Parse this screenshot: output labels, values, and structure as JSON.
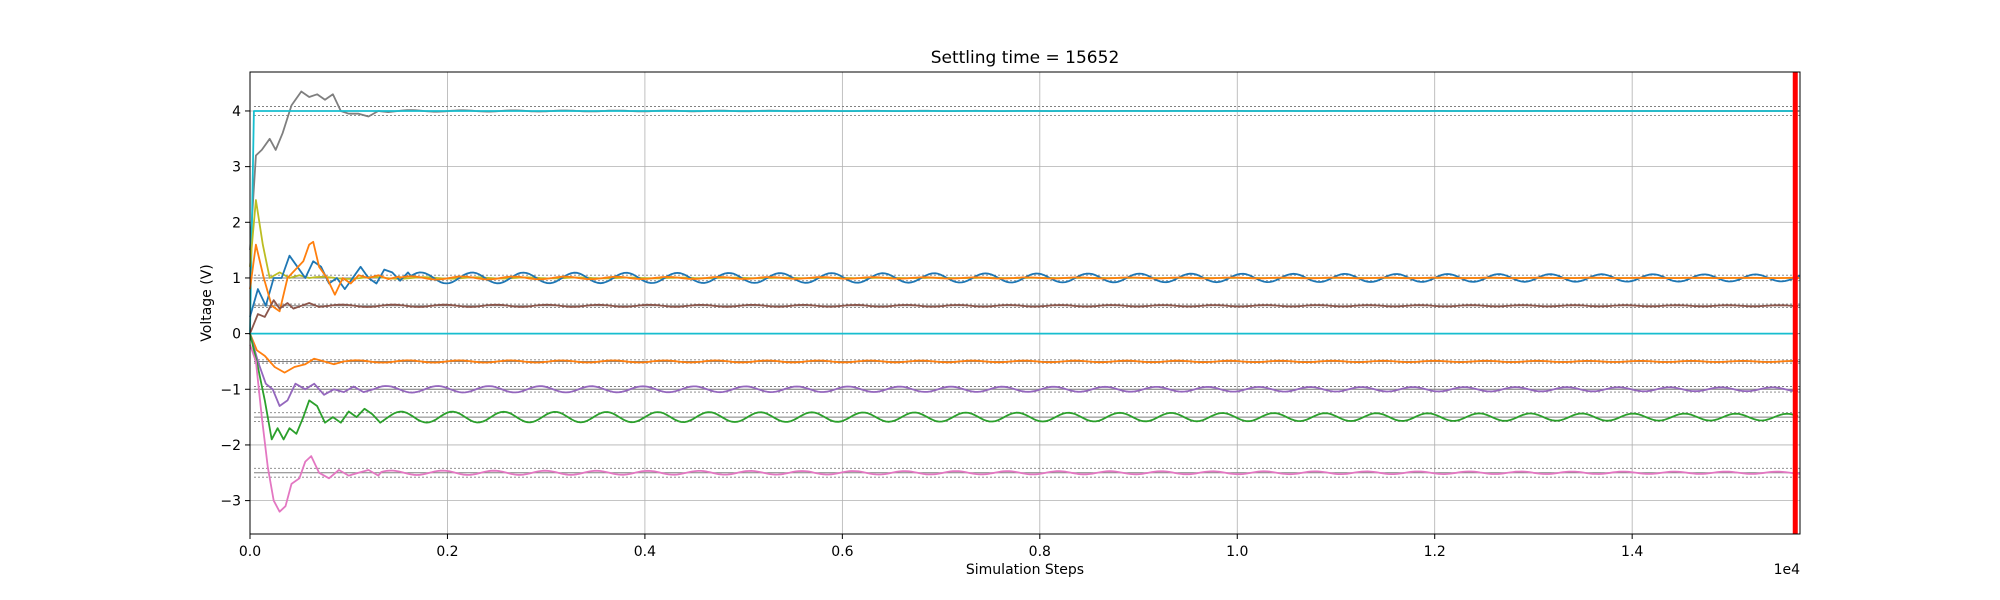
{
  "chart_data": {
    "type": "line",
    "title": "Settling time = 15652",
    "xlabel": "Simulation Steps",
    "ylabel": "Voltage (V)",
    "x_multiplier_label": "1e4",
    "xlim": [
      0,
      15700
    ],
    "ylim": [
      -3.6,
      4.7
    ],
    "x_ticks": [
      0,
      2000,
      4000,
      6000,
      8000,
      10000,
      12000,
      14000
    ],
    "x_tick_labels": [
      "0.0",
      "0.2",
      "0.4",
      "0.6",
      "0.8",
      "1.0",
      "1.2",
      "1.4"
    ],
    "y_ticks": [
      -3,
      -2,
      -1,
      0,
      1,
      2,
      3,
      4
    ],
    "y_tick_labels": [
      "−3",
      "−2",
      "−1",
      "0",
      "1",
      "2",
      "3",
      "4"
    ],
    "grid": true,
    "settling_marker_x": 15652,
    "settling_marker_color": "#ff0000",
    "reference_colors": {
      "solid": "#808080",
      "dotted": "#808080"
    },
    "references": [
      {
        "target": 4.0,
        "band": 0.08
      },
      {
        "target": 1.0,
        "band": 0.05
      },
      {
        "target": 0.5,
        "band": 0.03
      },
      {
        "target": 0.0,
        "band": 0.0
      },
      {
        "target": -0.5,
        "band": 0.03
      },
      {
        "target": -1.0,
        "band": 0.05
      },
      {
        "target": -1.5,
        "band": 0.08
      },
      {
        "target": -2.5,
        "band": 0.08
      }
    ],
    "series": [
      {
        "color": "#7f7f7f",
        "target": 4.0,
        "amp": 0.015,
        "period": 520,
        "decay": 3000,
        "width": 1.8,
        "transient": [
          [
            0,
            1.5
          ],
          [
            60,
            3.2
          ],
          [
            120,
            3.3
          ],
          [
            200,
            3.5
          ],
          [
            260,
            3.3
          ],
          [
            330,
            3.6
          ],
          [
            420,
            4.1
          ],
          [
            520,
            4.35
          ],
          [
            600,
            4.25
          ],
          [
            680,
            4.3
          ],
          [
            760,
            4.2
          ],
          [
            840,
            4.3
          ],
          [
            920,
            4.0
          ],
          [
            1000,
            3.95
          ],
          [
            1100,
            3.95
          ],
          [
            1200,
            3.9
          ],
          [
            1300,
            4.0
          ],
          [
            1400,
            3.98
          ],
          [
            1500,
            4.0
          ]
        ]
      },
      {
        "color": "#17becf",
        "target": 4.0,
        "amp": 0,
        "period": 520,
        "decay": 3000,
        "width": 1.8,
        "transient": [
          [
            0,
            0
          ],
          [
            40,
            4.0
          ],
          [
            80,
            4.0
          ]
        ]
      },
      {
        "color": "#bcbd22",
        "target": 1.0,
        "amp": 0.02,
        "period": 520,
        "decay": 3000,
        "width": 1.8,
        "transient": [
          [
            0,
            1.2
          ],
          [
            60,
            2.4
          ],
          [
            130,
            1.6
          ],
          [
            200,
            1.0
          ],
          [
            300,
            1.1
          ],
          [
            400,
            1.0
          ],
          [
            500,
            1.05
          ],
          [
            600,
            1.0
          ]
        ]
      },
      {
        "color": "#1f77b4",
        "target": 1.0,
        "amp": 0.1,
        "period": 520,
        "decay": 30000,
        "width": 1.8,
        "transient": [
          [
            0,
            0.3
          ],
          [
            80,
            0.8
          ],
          [
            160,
            0.5
          ],
          [
            240,
            1.0
          ],
          [
            320,
            1.0
          ],
          [
            400,
            1.4
          ],
          [
            480,
            1.2
          ],
          [
            560,
            1.0
          ],
          [
            640,
            1.3
          ],
          [
            720,
            1.2
          ],
          [
            800,
            0.9
          ],
          [
            880,
            1.0
          ],
          [
            960,
            0.8
          ],
          [
            1040,
            1.0
          ],
          [
            1120,
            1.2
          ],
          [
            1200,
            1.0
          ],
          [
            1280,
            0.9
          ],
          [
            1360,
            1.15
          ],
          [
            1440,
            1.1
          ],
          [
            1520,
            0.95
          ],
          [
            1600,
            1.1
          ]
        ]
      },
      {
        "color": "#ff7f0e",
        "target": 1.0,
        "amp": 0.03,
        "period": 520,
        "decay": 6000,
        "width": 1.8,
        "transient": [
          [
            0,
            0.8
          ],
          [
            60,
            1.6
          ],
          [
            140,
            1.0
          ],
          [
            220,
            0.5
          ],
          [
            300,
            0.4
          ],
          [
            380,
            1.0
          ],
          [
            460,
            1.15
          ],
          [
            540,
            1.3
          ],
          [
            600,
            1.6
          ],
          [
            640,
            1.65
          ],
          [
            700,
            1.2
          ],
          [
            780,
            1.0
          ],
          [
            860,
            0.7
          ],
          [
            940,
            1.0
          ],
          [
            1020,
            0.9
          ],
          [
            1100,
            1.05
          ],
          [
            1200,
            1.0
          ],
          [
            1300,
            1.05
          ],
          [
            1400,
            0.98
          ],
          [
            1500,
            1.02
          ]
        ]
      },
      {
        "color": "#8c564b",
        "target": 0.5,
        "amp": 0.02,
        "period": 520,
        "decay": 20000,
        "width": 1.8,
        "transient": [
          [
            0,
            0.0
          ],
          [
            80,
            0.35
          ],
          [
            150,
            0.3
          ],
          [
            240,
            0.6
          ],
          [
            300,
            0.45
          ],
          [
            380,
            0.55
          ],
          [
            440,
            0.45
          ],
          [
            520,
            0.5
          ],
          [
            600,
            0.55
          ],
          [
            700,
            0.48
          ],
          [
            800,
            0.5
          ]
        ]
      },
      {
        "color": "#17becf",
        "target": 0.0,
        "amp": 0,
        "period": 520,
        "decay": 3000,
        "width": 1.8,
        "transient": [
          [
            0,
            0
          ],
          [
            200,
            0
          ]
        ]
      },
      {
        "color": "#ff7f0e",
        "target": -0.5,
        "amp": 0.02,
        "period": 520,
        "decay": 20000,
        "width": 1.8,
        "transient": [
          [
            0,
            0.0
          ],
          [
            70,
            -0.3
          ],
          [
            150,
            -0.4
          ],
          [
            250,
            -0.6
          ],
          [
            350,
            -0.7
          ],
          [
            450,
            -0.6
          ],
          [
            560,
            -0.55
          ],
          [
            650,
            -0.45
          ],
          [
            750,
            -0.5
          ],
          [
            850,
            -0.55
          ],
          [
            950,
            -0.5
          ]
        ]
      },
      {
        "color": "#9467bd",
        "target": -1.0,
        "amp": 0.06,
        "period": 520,
        "decay": 25000,
        "width": 1.8,
        "transient": [
          [
            0,
            0.0
          ],
          [
            80,
            -0.5
          ],
          [
            160,
            -0.9
          ],
          [
            230,
            -1.0
          ],
          [
            300,
            -1.3
          ],
          [
            380,
            -1.2
          ],
          [
            460,
            -0.9
          ],
          [
            560,
            -1.0
          ],
          [
            650,
            -0.9
          ],
          [
            750,
            -1.1
          ],
          [
            850,
            -1.0
          ],
          [
            950,
            -1.05
          ],
          [
            1050,
            -0.95
          ],
          [
            1150,
            -1.05
          ],
          [
            1250,
            -1.0
          ]
        ]
      },
      {
        "color": "#2ca02c",
        "target": -1.5,
        "amp": 0.1,
        "period": 520,
        "decay": 28000,
        "width": 1.8,
        "transient": [
          [
            0,
            0.0
          ],
          [
            80,
            -0.6
          ],
          [
            150,
            -1.2
          ],
          [
            220,
            -1.9
          ],
          [
            280,
            -1.7
          ],
          [
            340,
            -1.9
          ],
          [
            400,
            -1.7
          ],
          [
            470,
            -1.8
          ],
          [
            540,
            -1.5
          ],
          [
            600,
            -1.2
          ],
          [
            680,
            -1.3
          ],
          [
            760,
            -1.6
          ],
          [
            840,
            -1.5
          ],
          [
            920,
            -1.6
          ],
          [
            1000,
            -1.4
          ],
          [
            1080,
            -1.5
          ],
          [
            1160,
            -1.35
          ],
          [
            1240,
            -1.45
          ],
          [
            1320,
            -1.6
          ],
          [
            1400,
            -1.5
          ]
        ]
      },
      {
        "color": "#e377c2",
        "target": -2.5,
        "amp": 0.04,
        "period": 520,
        "decay": 20000,
        "width": 1.8,
        "transient": [
          [
            0,
            -0.2
          ],
          [
            60,
            -0.5
          ],
          [
            120,
            -1.5
          ],
          [
            180,
            -2.4
          ],
          [
            240,
            -3.0
          ],
          [
            300,
            -3.2
          ],
          [
            360,
            -3.1
          ],
          [
            420,
            -2.7
          ],
          [
            500,
            -2.6
          ],
          [
            560,
            -2.3
          ],
          [
            620,
            -2.2
          ],
          [
            700,
            -2.5
          ],
          [
            800,
            -2.6
          ],
          [
            900,
            -2.45
          ],
          [
            1000,
            -2.55
          ],
          [
            1100,
            -2.5
          ],
          [
            1200,
            -2.45
          ],
          [
            1300,
            -2.55
          ]
        ]
      }
    ]
  }
}
